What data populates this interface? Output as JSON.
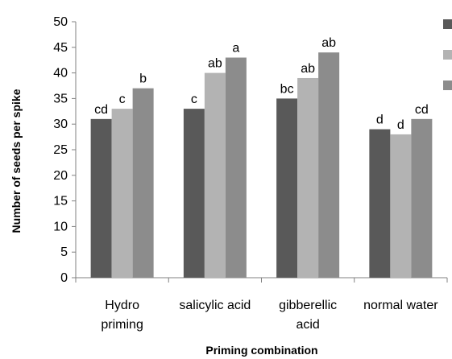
{
  "chart_data": {
    "type": "bar",
    "title": "",
    "xlabel": "Priming combination",
    "ylabel": "Number of seeds per spike",
    "ylim": [
      0,
      50
    ],
    "yticks": [
      0,
      5,
      10,
      15,
      20,
      25,
      30,
      35,
      40,
      45,
      50
    ],
    "categories": [
      {
        "lines": [
          "Hydro",
          "priming"
        ]
      },
      {
        "lines": [
          "salicylic acid"
        ]
      },
      {
        "lines": [
          "gibberellic",
          "acid"
        ]
      },
      {
        "lines": [
          "normal water"
        ]
      }
    ],
    "series": [
      {
        "color": "#595959",
        "values": [
          31,
          33,
          35,
          29
        ],
        "labels": [
          "cd",
          "c",
          "bc",
          "d"
        ]
      },
      {
        "color": "#b3b3b3",
        "values": [
          33,
          40,
          39,
          28
        ],
        "labels": [
          "c",
          "ab",
          "ab",
          "d"
        ]
      },
      {
        "color": "#8c8c8c",
        "values": [
          37,
          43,
          44,
          31
        ],
        "labels": [
          "b",
          "a",
          "ab",
          "cd"
        ]
      }
    ],
    "legend": {
      "placement": "right",
      "entries": [
        "",
        "",
        ""
      ]
    },
    "grid": false
  }
}
